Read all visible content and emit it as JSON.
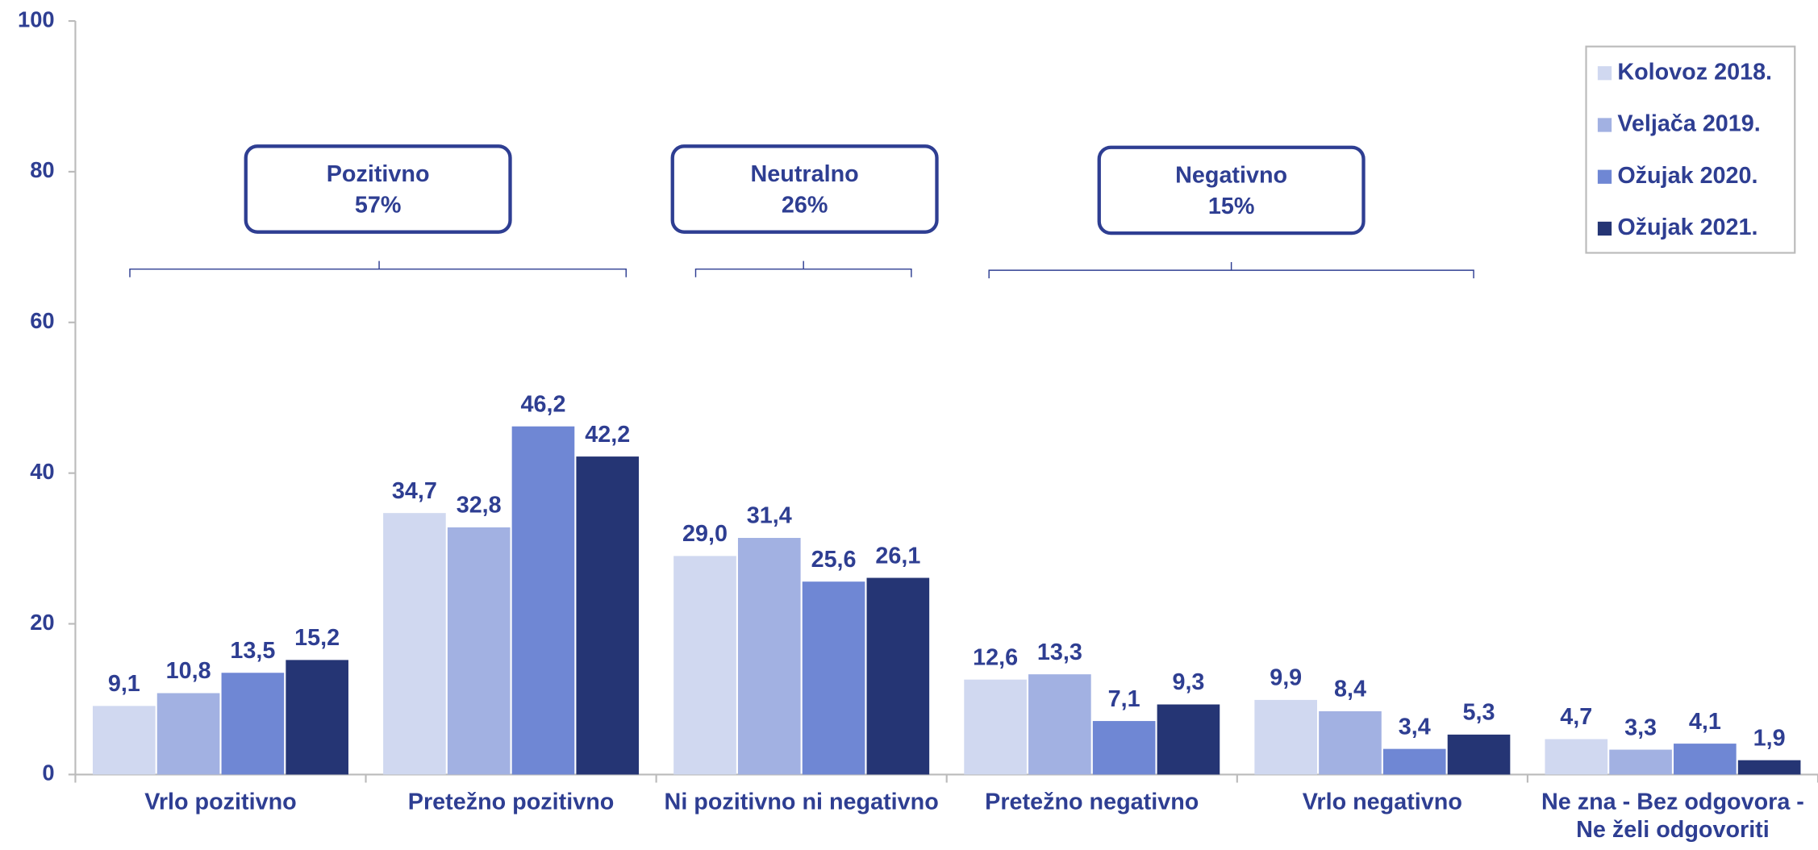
{
  "chart_data": {
    "type": "bar",
    "categories": [
      "Vrlo pozitivno",
      "Pretežno pozitivno",
      "Ni pozitivno ni negativno",
      "Pretežno negativno",
      "Vrlo negativno",
      "Ne zna - Bez odgovora - Ne želi odgovoriti"
    ],
    "series": [
      {
        "name": "Kolovoz 2018.",
        "color": "#d0d8f0",
        "values": [
          9.1,
          34.7,
          29.0,
          12.6,
          9.9,
          4.7
        ],
        "value_labels": [
          "9,1",
          "34,7",
          "29,0",
          "12,6",
          "9,9",
          "4,7"
        ]
      },
      {
        "name": "Veljača 2019.",
        "color": "#a2b1e2",
        "values": [
          10.8,
          32.8,
          31.4,
          13.3,
          8.4,
          3.3
        ],
        "value_labels": [
          "10,8",
          "32,8",
          "31,4",
          "13,3",
          "8,4",
          "3,3"
        ]
      },
      {
        "name": "Ožujak 2020.",
        "color": "#6f87d4",
        "values": [
          13.5,
          46.2,
          25.6,
          7.1,
          3.4,
          4.1
        ],
        "value_labels": [
          "13,5",
          "46,2",
          "25,6",
          "7,1",
          "3,4",
          "4,1"
        ]
      },
      {
        "name": "Ožujak 2021.",
        "color": "#253574",
        "values": [
          15.2,
          42.2,
          26.1,
          9.3,
          5.3,
          1.9
        ],
        "value_labels": [
          "15,2",
          "42,2",
          "26,1",
          "9,3",
          "5,3",
          "1,9"
        ]
      }
    ],
    "ylim": [
      0,
      100
    ],
    "yticks": [
      0,
      20,
      40,
      60,
      80,
      100
    ],
    "grid": false,
    "legend": "top-right",
    "annotations": [
      {
        "title": "Pozitivno",
        "text": "57%"
      },
      {
        "title": "Neutralno",
        "text": "26%"
      },
      {
        "title": "Negativno",
        "text": "15%"
      }
    ]
  }
}
